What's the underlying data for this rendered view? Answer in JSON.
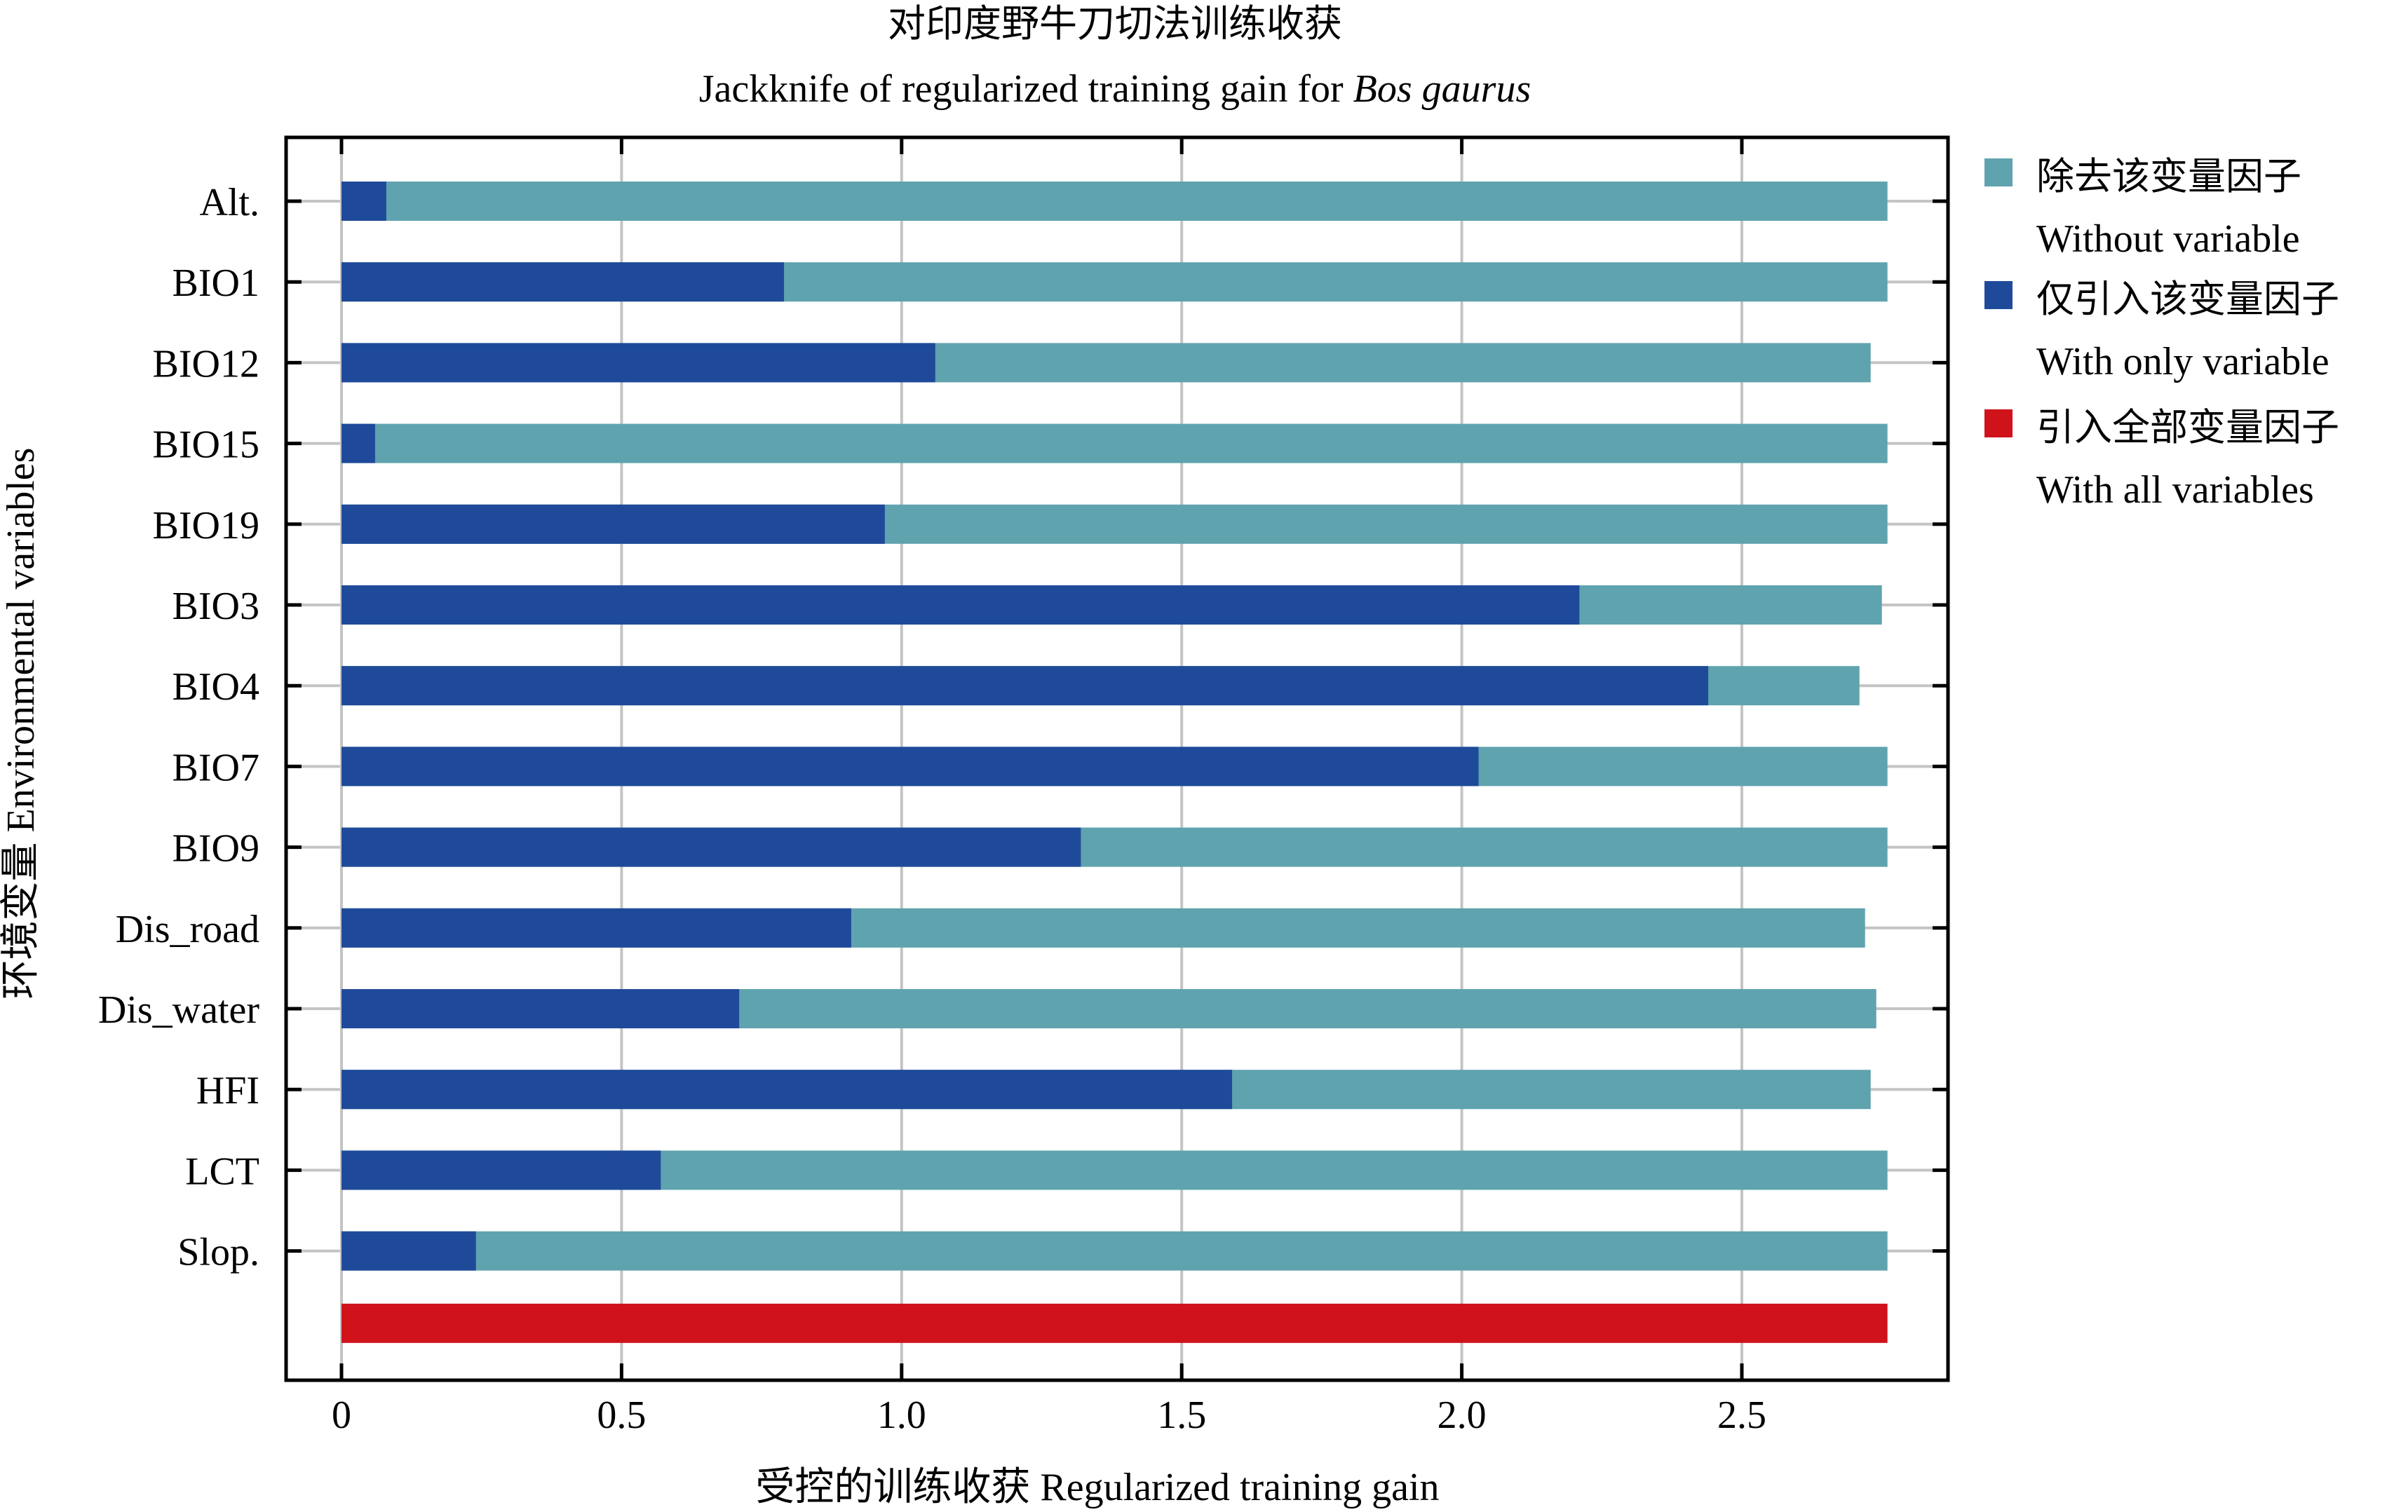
{
  "chart_data": {
    "type": "bar",
    "title_cn": "对印度野牛刀切法训练收获",
    "title_en_prefix": "Jackknife of regularized training gain for ",
    "title_en_species": "Bos gaurus",
    "xlabel": "受控的训练收获 Regularized training gain",
    "ylabel": "环境变量 Environmental variables",
    "xlim": [
      0,
      2.93
    ],
    "xticks": [
      0,
      0.5,
      1.0,
      1.5,
      2.0,
      2.5
    ],
    "xtick_labels": [
      "0",
      "0.5",
      "1.0",
      "1.5",
      "2.0",
      "2.5"
    ],
    "grid": true,
    "legend_position": "right",
    "categories": [
      "Alt.",
      "BIO1",
      "BIO12",
      "BIO15",
      "BIO19",
      "BIO3",
      "BIO4",
      "BIO7",
      "BIO9",
      "Dis_road",
      "Dis_water",
      "HFI",
      "LCT",
      "Slop."
    ],
    "series": [
      {
        "name_cn": "除去该变量因子",
        "name_en": "Without variable",
        "color": "#5fa3ae",
        "values": [
          2.76,
          2.76,
          2.73,
          2.76,
          2.76,
          2.75,
          2.71,
          2.76,
          2.76,
          2.72,
          2.74,
          2.73,
          2.76,
          2.76
        ]
      },
      {
        "name_cn": "仅引入该变量因子",
        "name_en": "With only variable",
        "color": "#1f4a9a",
        "values": [
          0.08,
          0.79,
          1.06,
          0.06,
          0.97,
          2.21,
          2.44,
          2.03,
          1.32,
          0.91,
          0.71,
          1.59,
          0.57,
          0.24
        ]
      },
      {
        "name_cn": "引入全部变量因子",
        "name_en": "With all variables",
        "color": "#d0121b",
        "value": 2.76
      }
    ]
  }
}
